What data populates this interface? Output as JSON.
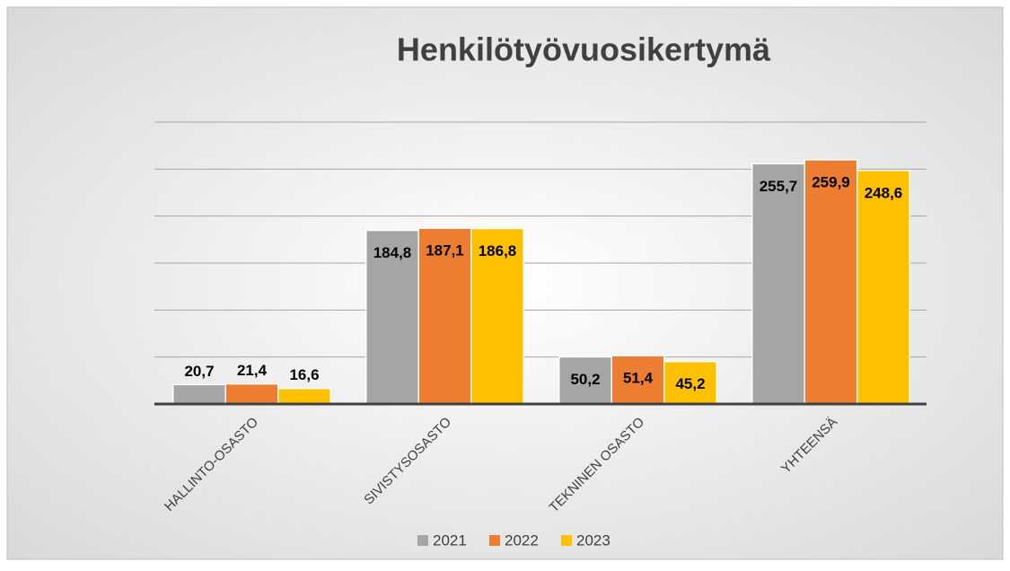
{
  "chart_data": {
    "type": "bar",
    "title": "Henkilötyövuosikertymä",
    "categories": [
      "HALLINTO-OSASTO",
      "SIVISTYSOSASTO",
      "TEKNINEN OSASTO",
      "YHTEENSÄ"
    ],
    "series": [
      {
        "name": "2021",
        "color": "#a5a5a5",
        "values": [
          20.7,
          184.8,
          50.2,
          255.7
        ],
        "value_labels": [
          "20,7",
          "184,8",
          "50,2",
          "255,7"
        ]
      },
      {
        "name": "2022",
        "color": "#ed7d31",
        "values": [
          21.4,
          187.1,
          51.4,
          259.9
        ],
        "value_labels": [
          "21,4",
          "187,1",
          "51,4",
          "259,9"
        ]
      },
      {
        "name": "2023",
        "color": "#ffc000",
        "values": [
          16.6,
          186.8,
          45.2,
          248.6
        ],
        "value_labels": [
          "16,6",
          "186,8",
          "45,2",
          "248,6"
        ]
      }
    ],
    "ylim": [
      0,
      300
    ],
    "yticks": [
      0,
      50,
      100,
      150,
      200,
      250,
      300
    ],
    "grid": true,
    "legend": "bottom"
  }
}
